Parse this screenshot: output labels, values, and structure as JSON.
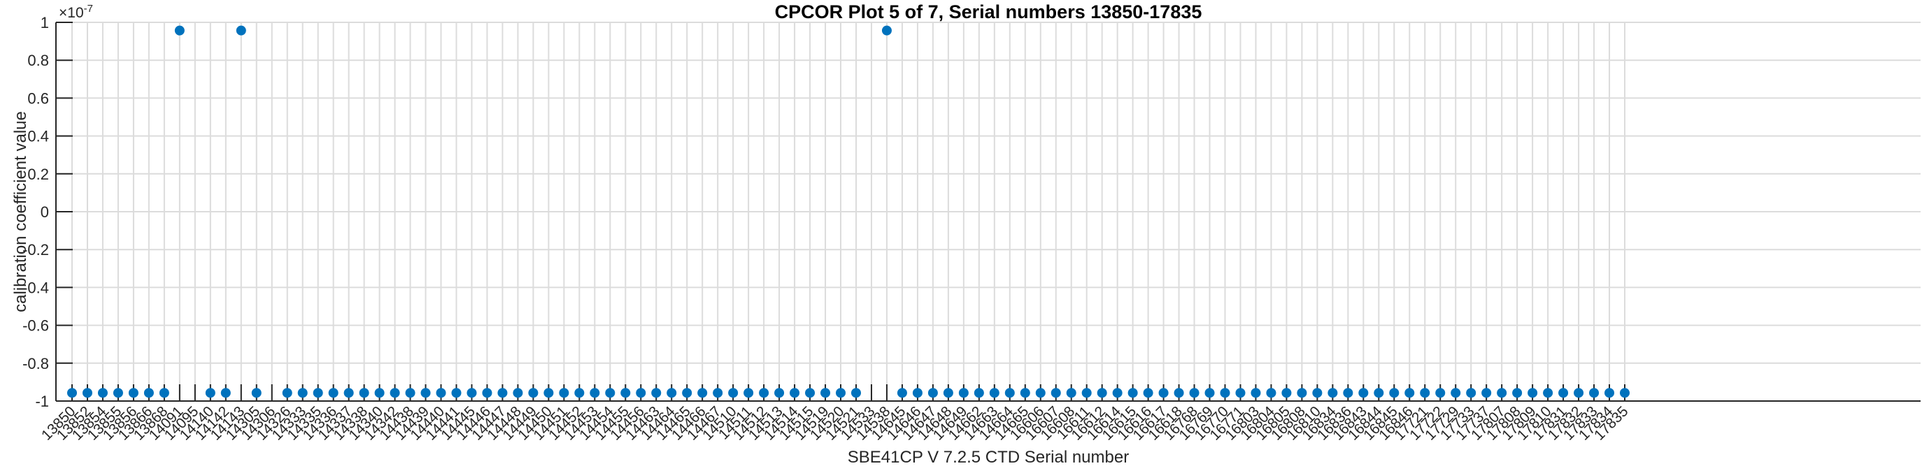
{
  "colors": {
    "marker": "#0072BD",
    "axis": "#262626",
    "grid": "#dcdcdc",
    "title": "#000000",
    "background": "#ffffff"
  },
  "chart_data": {
    "type": "scatter",
    "title": "CPCOR Plot 5 of 7, Serial numbers 13850-17835",
    "xlabel": "SBE41CP V 7.2.5 CTD Serial number",
    "ylabel": "calibration coefficient value",
    "exponent": {
      "base": "×10",
      "power": "-7"
    },
    "value_scale": 1e-07,
    "ylim": [
      -1,
      1
    ],
    "grid": true,
    "legend": "none",
    "marker": {
      "shape": "circle",
      "color": "#0072BD"
    },
    "yticks": [
      "1",
      "0.8",
      "0.6",
      "0.4",
      "0.2",
      "0",
      "-0.2",
      "-0.4",
      "-0.6",
      "-0.8",
      "-1"
    ],
    "categories": [
      "13850",
      "13852",
      "13854",
      "13855",
      "13856",
      "13866",
      "13868",
      "14091",
      "14095",
      "14140",
      "14142",
      "14143",
      "14305",
      "14306",
      "14326",
      "14333",
      "14335",
      "14336",
      "14337",
      "14338",
      "14340",
      "14342",
      "14438",
      "14439",
      "14440",
      "14441",
      "14445",
      "14446",
      "14447",
      "14448",
      "14449",
      "14450",
      "14451",
      "14452",
      "14453",
      "14454",
      "14455",
      "14456",
      "14463",
      "14464",
      "14465",
      "14466",
      "14467",
      "14510",
      "14511",
      "14512",
      "14513",
      "14514",
      "14515",
      "14519",
      "14520",
      "14521",
      "14533",
      "14538",
      "14645",
      "14646",
      "14647",
      "14648",
      "14649",
      "14662",
      "14663",
      "14664",
      "14665",
      "16606",
      "16607",
      "16608",
      "16611",
      "16612",
      "16614",
      "16615",
      "16616",
      "16617",
      "16618",
      "16768",
      "16769",
      "16770",
      "16771",
      "16803",
      "16804",
      "16805",
      "16808",
      "16810",
      "16834",
      "16836",
      "16843",
      "16844",
      "16845",
      "16846",
      "17721",
      "17722",
      "17729",
      "17733",
      "17737",
      "17807",
      "17808",
      "17809",
      "17810",
      "17831",
      "17832",
      "17833",
      "17834",
      "17835"
    ],
    "values": [
      -0.957,
      -0.957,
      -0.957,
      -0.957,
      -0.957,
      -0.957,
      -0.957,
      0.957,
      null,
      -0.957,
      -0.957,
      0.957,
      -0.957,
      null,
      -0.957,
      -0.957,
      -0.957,
      -0.957,
      -0.957,
      -0.957,
      -0.957,
      -0.957,
      -0.957,
      -0.957,
      -0.957,
      -0.957,
      -0.957,
      -0.957,
      -0.957,
      -0.957,
      -0.957,
      -0.957,
      -0.957,
      -0.957,
      -0.957,
      -0.957,
      -0.957,
      -0.957,
      -0.957,
      -0.957,
      -0.957,
      -0.957,
      -0.957,
      -0.957,
      -0.957,
      -0.957,
      -0.957,
      -0.957,
      -0.957,
      -0.957,
      -0.957,
      -0.957,
      null,
      0.957,
      -0.957,
      -0.957,
      -0.957,
      -0.957,
      -0.957,
      -0.957,
      -0.957,
      -0.957,
      -0.957,
      -0.957,
      -0.957,
      -0.957,
      -0.957,
      -0.957,
      -0.957,
      -0.957,
      -0.957,
      -0.957,
      -0.957,
      -0.957,
      -0.957,
      -0.957,
      -0.957,
      -0.957,
      -0.957,
      -0.957,
      -0.957,
      -0.957,
      -0.957,
      -0.957,
      -0.957,
      -0.957,
      -0.957,
      -0.957,
      -0.957,
      -0.957,
      -0.957,
      -0.957,
      -0.957,
      -0.957,
      -0.957,
      -0.957,
      -0.957,
      -0.957,
      -0.957,
      -0.957,
      -0.957,
      -0.957
    ]
  }
}
